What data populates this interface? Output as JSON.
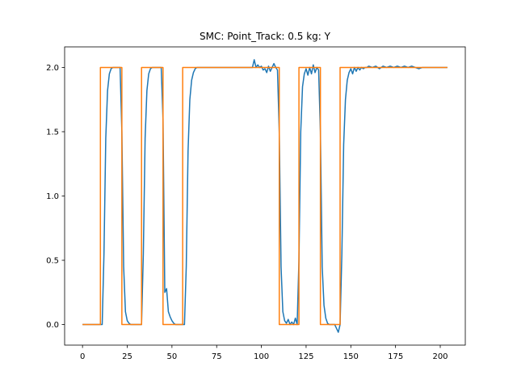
{
  "chart_data": {
    "type": "line",
    "title": "SMC: Point_Track: 0.5 kg: Y",
    "xlabel": "",
    "ylabel": "",
    "xlim": [
      -10,
      214
    ],
    "ylim": [
      -0.16,
      2.16
    ],
    "x_ticks": [
      0,
      25,
      50,
      75,
      100,
      125,
      150,
      175,
      200
    ],
    "x_tick_labels": [
      "0",
      "25",
      "50",
      "75",
      "100",
      "125",
      "150",
      "175",
      "200"
    ],
    "y_ticks": [
      0.0,
      0.5,
      1.0,
      1.5,
      2.0
    ],
    "y_tick_labels": [
      "0.0",
      "0.5",
      "1.0",
      "1.5",
      "2.0"
    ],
    "grid": false,
    "legend": "none",
    "series": [
      {
        "color": "#1f77b4",
        "x": [
          0,
          11,
          12,
          13,
          14,
          15,
          16,
          17,
          18,
          19,
          20,
          21,
          22,
          23,
          24,
          25,
          26,
          27,
          28,
          29,
          33,
          34,
          35,
          36,
          37,
          38,
          39,
          40,
          41,
          42,
          43,
          44,
          45,
          46,
          47,
          48,
          49,
          50,
          51,
          52,
          53,
          54,
          55,
          57,
          58,
          59,
          60,
          61,
          62,
          63,
          64,
          65,
          66,
          70,
          80,
          90,
          95,
          96,
          97,
          98,
          99,
          100,
          101,
          102,
          103,
          104,
          105,
          106,
          107,
          108,
          109,
          110,
          111,
          112,
          113,
          114,
          115,
          116,
          117,
          118,
          119,
          120,
          121,
          122,
          123,
          124,
          125,
          126,
          127,
          128,
          129,
          130,
          131,
          132,
          133,
          134,
          135,
          136,
          137,
          138,
          139,
          140,
          141,
          142,
          143,
          144,
          145,
          146,
          147,
          148,
          149,
          150,
          151,
          152,
          153,
          154,
          155,
          156,
          157,
          158,
          159,
          160,
          162,
          164,
          166,
          168,
          170,
          172,
          174,
          176,
          178,
          180,
          182,
          184,
          186,
          188,
          190,
          195,
          204
        ],
        "values": [
          0,
          0,
          0.55,
          1.45,
          1.82,
          1.95,
          1.99,
          2.0,
          2.0,
          2.0,
          2.0,
          2.0,
          1.5,
          0.45,
          0.1,
          0.03,
          0.01,
          0.0,
          0.0,
          0.0,
          0.0,
          0.55,
          1.45,
          1.82,
          1.95,
          1.99,
          2.0,
          2.0,
          2.0,
          2.0,
          2.0,
          2.0,
          1.6,
          0.25,
          0.28,
          0.1,
          0.06,
          0.03,
          0.01,
          0.0,
          0.0,
          0.0,
          0.0,
          0.0,
          0.45,
          1.35,
          1.75,
          1.9,
          1.96,
          1.99,
          2.0,
          2.0,
          2.0,
          2.0,
          2.0,
          2.0,
          2.0,
          2.06,
          2.0,
          2.02,
          2.0,
          2.01,
          1.98,
          1.99,
          1.96,
          2.01,
          1.97,
          2.0,
          2.03,
          2.0,
          1.98,
          1.5,
          0.45,
          0.1,
          0.03,
          0.01,
          0.04,
          0.0,
          0.02,
          0.0,
          0.05,
          0.0,
          0.5,
          1.5,
          1.85,
          1.95,
          1.99,
          1.94,
          2.0,
          1.95,
          2.02,
          1.96,
          2.0,
          1.98,
          1.5,
          0.45,
          0.15,
          0.05,
          0.01,
          0.0,
          0.0,
          0.0,
          0.0,
          -0.03,
          -0.06,
          0.0,
          0.55,
          1.4,
          1.75,
          1.9,
          1.96,
          1.99,
          1.95,
          2.0,
          1.97,
          2.0,
          1.98,
          2.0,
          1.99,
          2.0,
          2.0,
          2.01,
          2.0,
          2.01,
          1.99,
          2.01,
          2.0,
          2.01,
          2.0,
          2.01,
          2.0,
          2.01,
          2.0,
          2.01,
          2.0,
          1.99,
          2.0,
          2.0,
          2.0
        ]
      },
      {
        "color": "#ff7f0e",
        "x": [
          0,
          10,
          10,
          22,
          22,
          33,
          33,
          45,
          45,
          56,
          56,
          110,
          110,
          121,
          121,
          133,
          133,
          144,
          144,
          204
        ],
        "values": [
          0,
          0,
          2,
          2,
          0,
          0,
          2,
          2,
          0,
          0,
          2,
          2,
          0,
          0,
          2,
          2,
          0,
          0,
          2,
          2
        ]
      }
    ]
  }
}
